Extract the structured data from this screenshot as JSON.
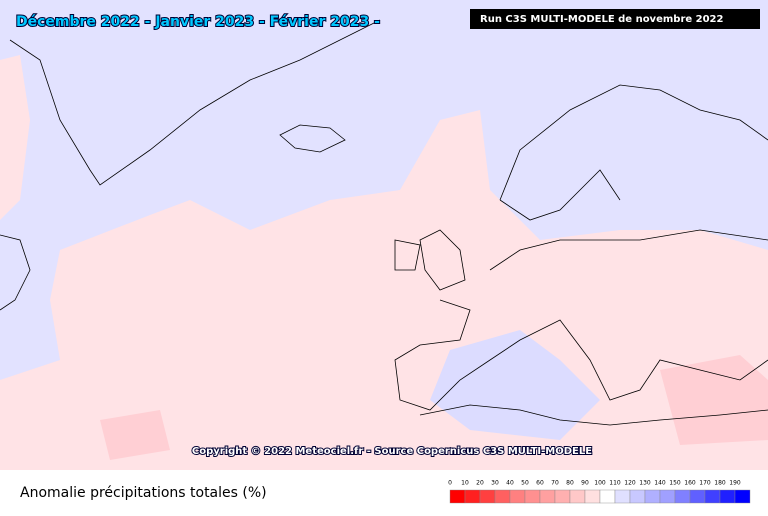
{
  "header": {
    "title": "Décembre 2022 - Janvier 2023 - Février 2023 -",
    "run": "Run C3S MULTI-MODELE de novembre 2022"
  },
  "copyright": "Copyright © 2022 Meteociel.fr - Source Copernicus C3S MULTI-MODELE",
  "legend": {
    "title": "Anomalie précipitations totales (%)",
    "ticks": [
      0,
      10,
      20,
      30,
      40,
      50,
      60,
      70,
      80,
      90,
      100,
      110,
      120,
      130,
      140,
      150,
      160,
      170,
      180,
      190
    ],
    "colors": [
      "#ff0000",
      "#ff2020",
      "#ff4040",
      "#ff6060",
      "#ff8080",
      "#ff9090",
      "#ffa0a0",
      "#ffb0b0",
      "#ffc8c8",
      "#ffe0e0",
      "#ffffff",
      "#e0e0ff",
      "#c8c8ff",
      "#b0b0ff",
      "#a0a0ff",
      "#8080ff",
      "#6060ff",
      "#4040ff",
      "#2020ff",
      "#0000ff"
    ]
  }
}
